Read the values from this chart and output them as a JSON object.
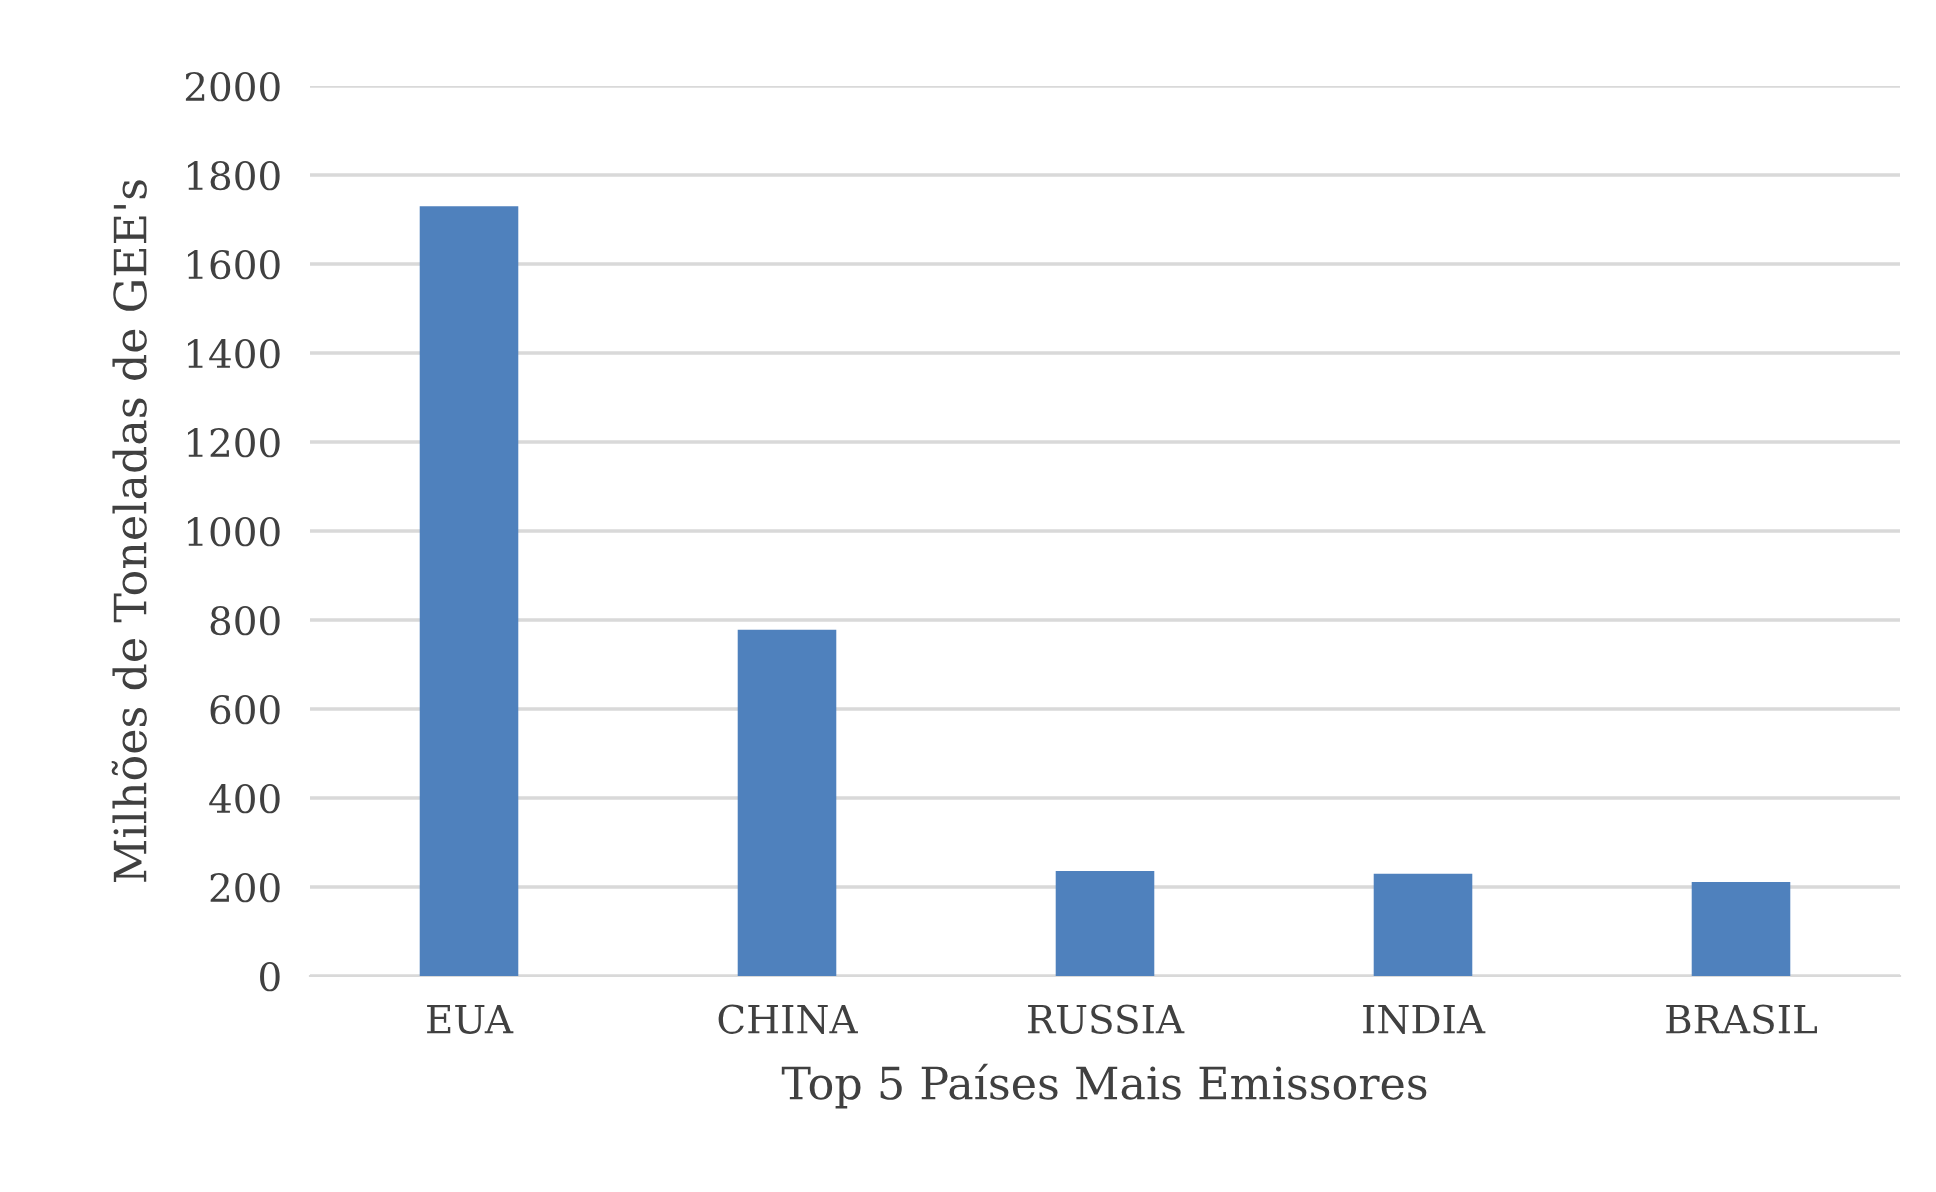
{
  "chart_data": {
    "type": "bar",
    "xlabel": "Top 5 Países Mais Emissores",
    "ylabel": "Milhões de Toneladas de GEE's",
    "categories": [
      "EUA",
      "CHINA",
      "RUSSIA",
      "INDIA",
      "BRASIL"
    ],
    "values": [
      1730,
      778,
      236,
      230,
      211
    ],
    "color": "#4f81bd",
    "ylim": [
      0,
      2000
    ],
    "yticks": [
      0,
      200,
      400,
      600,
      800,
      1000,
      1200,
      1400,
      1600,
      1800,
      2000
    ],
    "grid": "y",
    "legend": false
  }
}
